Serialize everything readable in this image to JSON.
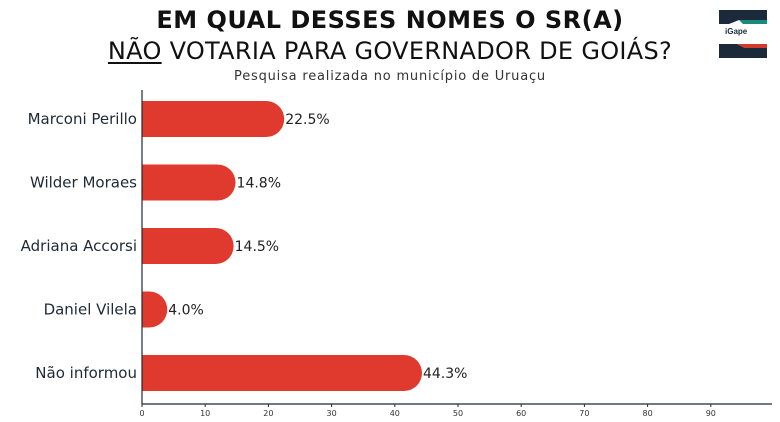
{
  "header": {
    "title_line1": "EM QUAL DESSES NOMES O SR(A)",
    "title_line2_underlined": "NÃO",
    "title_line2_rest": " VOTARIA PARA GOVERNADOR DE GOIÁS?",
    "subtitle": "Pesquisa realizada no município de Uruaçu",
    "logo_text": "iGape"
  },
  "colors": {
    "bar": "#e03a2e",
    "axis": "#1e2a36",
    "logo_teal": "#1a8a7a",
    "logo_red": "#d23b2b"
  },
  "chart_data": {
    "type": "bar",
    "orientation": "horizontal",
    "categories": [
      "Marconi Perillo",
      "Wilder Moraes",
      "Adriana Accorsi",
      "Daniel Vilela",
      "Não informou"
    ],
    "values": [
      22.5,
      14.8,
      14.5,
      4.0,
      44.3
    ],
    "value_labels": [
      "22.5%",
      "14.8%",
      "14.5%",
      "4.0%",
      "44.3%"
    ],
    "xlim": [
      0,
      100
    ],
    "xticks": [
      0,
      10,
      20,
      30,
      40,
      50,
      60,
      70,
      80,
      90
    ],
    "grid": false
  }
}
